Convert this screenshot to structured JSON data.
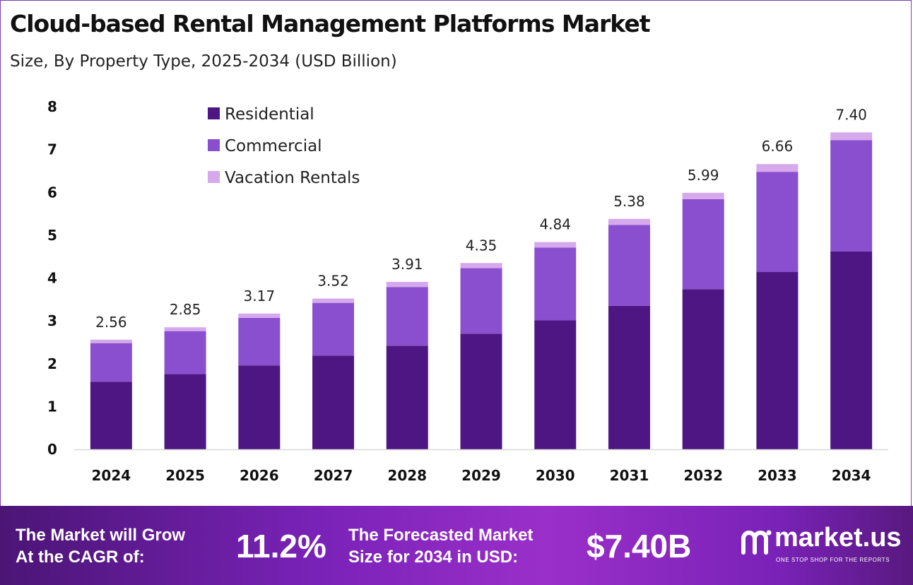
{
  "title": "Cloud-based Rental Management Platforms Market",
  "subtitle": "Size, By Property Type, 2025-2034 (USD Billion)",
  "colors": {
    "residential": "#4e1682",
    "commercial": "#8a4fcf",
    "vacation": "#d6a8ec"
  },
  "chart_data": {
    "type": "bar",
    "stacked": true,
    "categories": [
      "2024",
      "2025",
      "2026",
      "2027",
      "2028",
      "2029",
      "2030",
      "2031",
      "2032",
      "2033",
      "2034"
    ],
    "series": [
      {
        "name": "Residential",
        "values": [
          1.58,
          1.76,
          1.96,
          2.19,
          2.42,
          2.7,
          3.01,
          3.35,
          3.74,
          4.14,
          4.62
        ]
      },
      {
        "name": "Commercial",
        "values": [
          0.9,
          1.0,
          1.11,
          1.23,
          1.37,
          1.53,
          1.7,
          1.89,
          2.1,
          2.34,
          2.6
        ]
      },
      {
        "name": "Vacation Rentals",
        "values": [
          0.08,
          0.09,
          0.1,
          0.1,
          0.12,
          0.12,
          0.13,
          0.14,
          0.15,
          0.18,
          0.18
        ]
      }
    ],
    "totals": [
      "2.56",
      "2.85",
      "3.17",
      "3.52",
      "3.91",
      "4.35",
      "4.84",
      "5.38",
      "5.99",
      "6.66",
      "7.40"
    ],
    "y_ticks": [
      0,
      1,
      2,
      3,
      4,
      5,
      6,
      7,
      8
    ],
    "ylim": [
      0,
      8
    ],
    "legend_position": "top-left",
    "grid": false
  },
  "banner": {
    "cagr_line1": "The Market will Grow",
    "cagr_line2": "At the CAGR of:",
    "cagr_value": "11.2%",
    "forecast_line1": "The Forecasted Market",
    "forecast_line2": "Size for 2034 in USD:",
    "forecast_value": "$7.40B",
    "logo_name": "market.us",
    "logo_tagline": "ONE STOP SHOP FOR THE REPORTS"
  }
}
